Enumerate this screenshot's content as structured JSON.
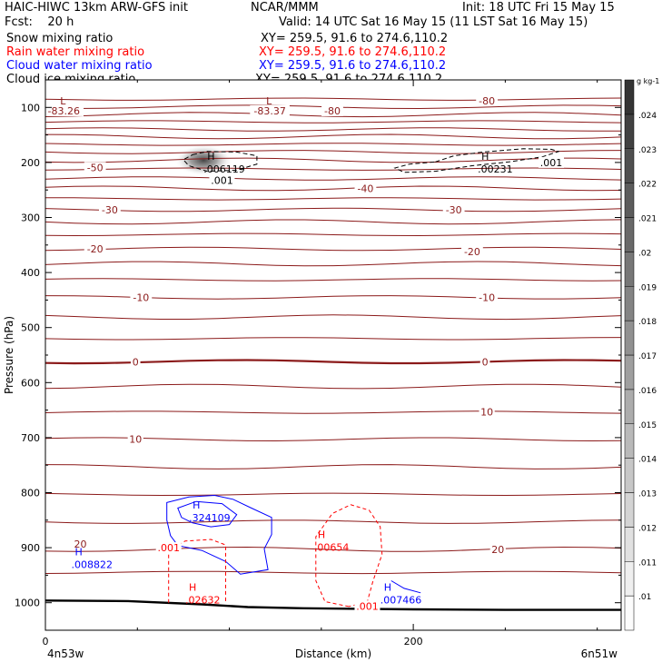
{
  "header": {
    "line1_left": "HAIC-HIWC 13km ARW-GFS init",
    "line1_center": "NCAR/MMM",
    "line1_right": "Init: 18 UTC Fri 15 May 15",
    "line2_left": "Fcst:    20 h",
    "line2_right": "Valid: 14 UTC Sat 16 May 15 (11 LST Sat 16 May 15)",
    "fields": [
      {
        "name": "Snow mixing ratio",
        "xy": "XY= 259.5, 91.6 to 274.6,110.2",
        "color": "#000000"
      },
      {
        "name": "Rain water mixing ratio",
        "xy": "XY= 259.5, 91.6 to 274.6,110.2",
        "color": "#ff0000"
      },
      {
        "name": "Cloud water mixing ratio",
        "xy": "XY= 259.5, 91.6 to 274.6,110.2",
        "color": "#0000ff"
      },
      {
        "name": "Cloud ice mixing ratio",
        "xy": "XY= 259.5, 91.6 to 274.6,110.2",
        "color": "#000000"
      }
    ]
  },
  "chart_data": {
    "type": "contour",
    "xlabel": "Distance (km)",
    "ylabel": "Pressure (hPa)",
    "xlim": [
      0,
      313
    ],
    "ylim": [
      1050,
      50
    ],
    "x_ticks": [
      0,
      200
    ],
    "x_tick_labels": [
      "0",
      "200"
    ],
    "y_ticks": [
      100,
      200,
      300,
      400,
      500,
      600,
      700,
      800,
      900,
      1000
    ],
    "x_endpoints": {
      "left": "4n53w",
      "right": "6n51w"
    },
    "temperature_contours": {
      "color": "#8b1a1a",
      "lines": [
        {
          "p": 85
        },
        {
          "p": 99
        },
        {
          "p": 113
        },
        {
          "p": 126
        },
        {
          "p": 140
        },
        {
          "p": 153
        },
        {
          "p": 167
        },
        {
          "p": 181
        },
        {
          "p": 196
        },
        {
          "p": 212
        },
        {
          "p": 229
        },
        {
          "p": 247
        },
        {
          "p": 266
        },
        {
          "p": 286
        },
        {
          "p": 308
        },
        {
          "p": 331
        },
        {
          "p": 357
        },
        {
          "p": 384
        },
        {
          "p": 413
        },
        {
          "p": 445
        },
        {
          "p": 481
        },
        {
          "p": 520
        },
        {
          "p": 562,
          "bold": true
        },
        {
          "p": 607
        },
        {
          "p": 654
        },
        {
          "p": 703
        },
        {
          "p": 753
        },
        {
          "p": 803
        },
        {
          "p": 853
        },
        {
          "p": 903
        },
        {
          "p": 945
        }
      ],
      "labels": [
        {
          "text": "-83.26",
          "x": 10,
          "p": 106
        },
        {
          "text": "-83.37",
          "x": 122,
          "p": 106
        },
        {
          "text": "-80",
          "x": 156,
          "p": 106
        },
        {
          "text": "-80",
          "x": 240,
          "p": 88
        },
        {
          "text": "-50",
          "x": 27,
          "p": 209
        },
        {
          "text": "-40",
          "x": 174,
          "p": 247
        },
        {
          "text": "-30",
          "x": 35,
          "p": 286
        },
        {
          "text": "-30",
          "x": 222,
          "p": 286
        },
        {
          "text": "-20",
          "x": 27,
          "p": 357
        },
        {
          "text": "-20",
          "x": 232,
          "p": 362
        },
        {
          "text": "-10",
          "x": 52,
          "p": 445
        },
        {
          "text": "-10",
          "x": 240,
          "p": 445
        },
        {
          "text": "0",
          "x": 49,
          "p": 562
        },
        {
          "text": "0",
          "x": 239,
          "p": 562
        },
        {
          "text": "10",
          "x": 49,
          "p": 703
        },
        {
          "text": "10",
          "x": 240,
          "p": 653
        },
        {
          "text": "20",
          "x": 19,
          "p": 893
        },
        {
          "text": "20",
          "x": 246,
          "p": 903
        }
      ]
    },
    "markers": [
      {
        "text": "L",
        "x": 10,
        "p": 88,
        "color": "#8b1a1a"
      },
      {
        "text": "L",
        "x": 122,
        "p": 88,
        "color": "#8b1a1a"
      },
      {
        "text": "H",
        "x": 90,
        "p": 189,
        "color": "#000000",
        "value": ".006119"
      },
      {
        "text": "H",
        "x": 239,
        "p": 189,
        "color": "#000000",
        "value": ".00231"
      },
      {
        "text": "H",
        "x": 82,
        "p": 822,
        "color": "#0000ff",
        "value": ".324109"
      },
      {
        "text": "H",
        "x": 18,
        "p": 907,
        "color": "#0000ff",
        "value": ".008822"
      },
      {
        "text": "H",
        "x": 150,
        "p": 876,
        "color": "#ff0000",
        "value": ".00654"
      },
      {
        "text": "H",
        "x": 80,
        "p": 972,
        "color": "#ff0000",
        "value": ".02632"
      },
      {
        "text": "H",
        "x": 186,
        "p": 972,
        "color": "#0000ff",
        "value": ".007466"
      }
    ],
    "annotations": [
      {
        "text": ".001",
        "x": 96,
        "p": 232,
        "color": "#000000"
      },
      {
        "text": ".001",
        "x": 275,
        "p": 200,
        "color": "#000000"
      },
      {
        "text": ".001",
        "x": 67,
        "p": 900,
        "color": "#ff0000"
      },
      {
        "text": ".001",
        "x": 175,
        "p": 1006,
        "color": "#ff0000"
      }
    ],
    "color_bar": {
      "unit": "g kg-1",
      "levels": [
        ".01",
        ".011",
        ".012",
        ".013",
        ".014",
        ".015",
        ".016",
        ".017",
        ".018",
        ".019",
        ".02",
        ".021",
        ".022",
        ".023",
        ".024"
      ]
    }
  }
}
